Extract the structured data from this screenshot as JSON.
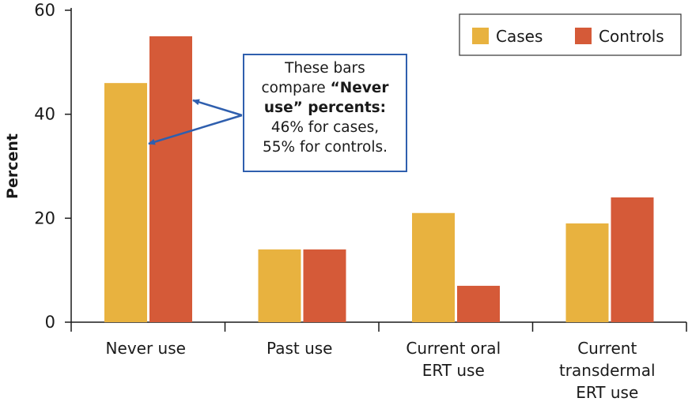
{
  "chart_data": {
    "type": "bar",
    "categories": [
      [
        "Never use"
      ],
      [
        "Past use"
      ],
      [
        "Current oral",
        "ERT use"
      ],
      [
        "Current",
        "transdermal",
        "ERT use"
      ]
    ],
    "series": [
      {
        "name": "Cases",
        "color": "#e8b23f",
        "values": [
          46,
          14,
          21,
          19
        ]
      },
      {
        "name": "Controls",
        "color": "#d55a38",
        "values": [
          55,
          14,
          7,
          24
        ]
      }
    ],
    "ylabel": "Percent",
    "ylim": [
      0,
      60
    ],
    "yticks": [
      0,
      20,
      40,
      60
    ],
    "grid": false,
    "legend": "top-right",
    "annotation": {
      "lines": [
        [
          {
            "t": "These bars",
            "b": false
          }
        ],
        [
          {
            "t": "compare ",
            "b": false
          },
          {
            "t": "“Never",
            "b": true
          }
        ],
        [
          {
            "t": "use” percents:",
            "b": true
          }
        ],
        [
          {
            "t": "46% for cases,",
            "b": false
          }
        ],
        [
          {
            "t": "55% for controls.",
            "b": false
          }
        ]
      ],
      "points_to": "Never use",
      "border_color": "#2f5fae"
    }
  }
}
